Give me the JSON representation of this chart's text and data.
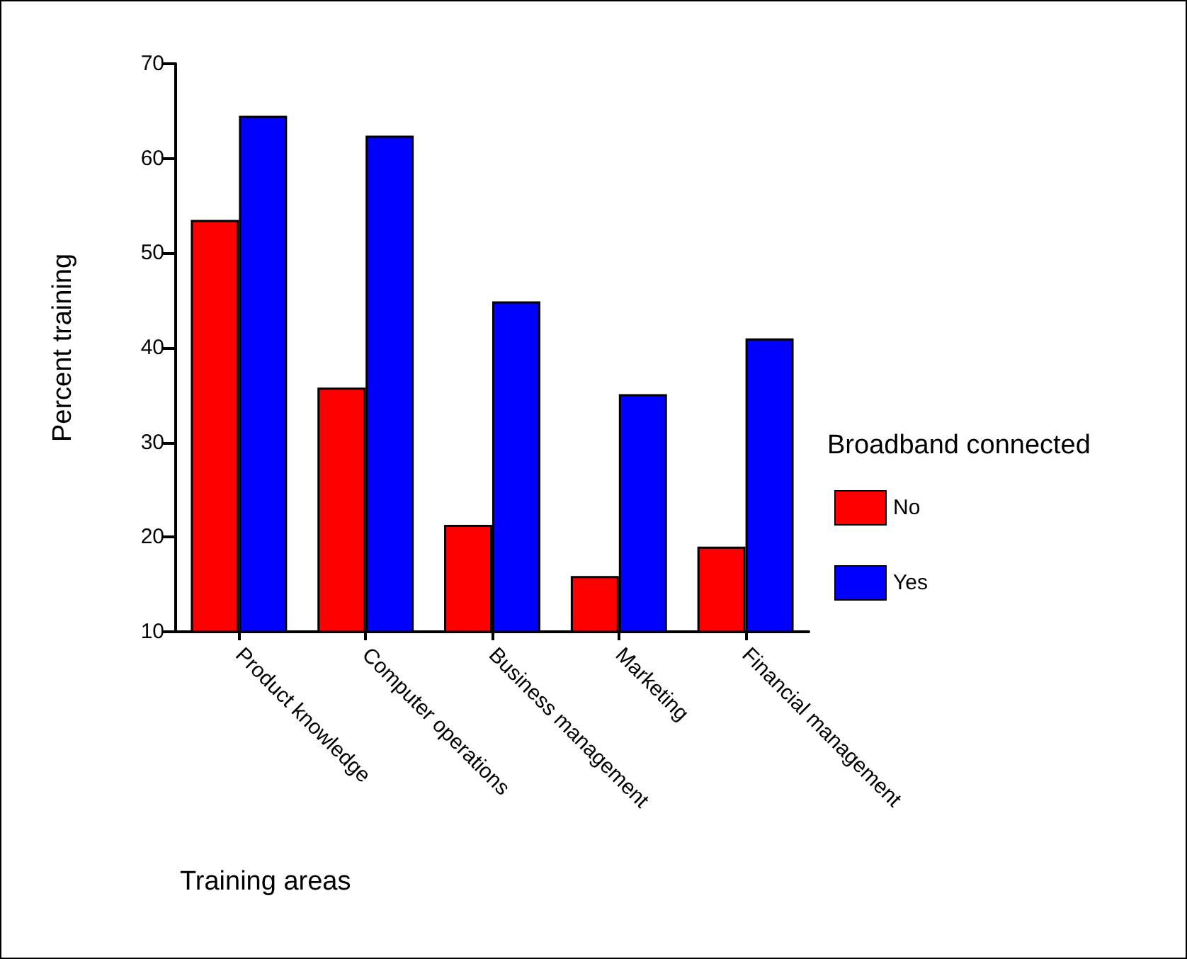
{
  "chart_data": {
    "type": "bar",
    "xlabel": "Training areas",
    "ylabel": "Percent training",
    "legend_title": "Broadband connected",
    "categories": [
      "Product knowledge",
      "Computer operations",
      "Business management",
      "Marketing",
      "Financial management"
    ],
    "series": [
      {
        "name": "No",
        "color": "#ff0000",
        "values": [
          53.5,
          35.8,
          21.3,
          15.9,
          19.0
        ]
      },
      {
        "name": "Yes",
        "color": "#0000ff",
        "values": [
          64.5,
          62.4,
          44.9,
          35.1,
          41.0
        ]
      }
    ],
    "ylim": [
      10,
      70
    ],
    "yticks": [
      10,
      20,
      30,
      40,
      50,
      60,
      70
    ],
    "grid": false,
    "legend": "right"
  }
}
